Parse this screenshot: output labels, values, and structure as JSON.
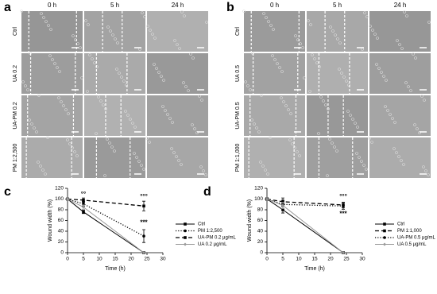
{
  "panels": [
    {
      "letter": "a",
      "columns": [
        "0 h",
        "5 h",
        "24 h"
      ],
      "rows": [
        "Ctrl",
        "UA 0.2",
        "UA-PM 0.2",
        "PM 1:2,500"
      ]
    },
    {
      "letter": "b",
      "columns": [
        "0 h",
        "5 h",
        "24 h"
      ],
      "rows": [
        "Ctrl",
        "UA 0.5",
        "UA-PM 0.5",
        "PM 1:1,000"
      ]
    }
  ],
  "chart_data": [
    {
      "type": "line",
      "letter": "c",
      "x_label": "Time (h)",
      "y_label": "Wound width (%)",
      "x": [
        0,
        5,
        24
      ],
      "xlim": [
        0,
        30
      ],
      "xticks": [
        0,
        5,
        10,
        15,
        20,
        25,
        30
      ],
      "ylim": [
        0,
        120
      ],
      "yticks": [
        0,
        20,
        40,
        60,
        80,
        100,
        120
      ],
      "series": [
        {
          "name": "Ctrl",
          "color": "#000000",
          "dash": "solid",
          "marker": "square",
          "values": [
            100,
            76,
            0
          ],
          "errors": [
            2,
            3,
            null
          ]
        },
        {
          "name": "PM 1:2,500",
          "color": "#000000",
          "dash": "dotted",
          "marker": "circle",
          "values": [
            100,
            91,
            31
          ],
          "errors": [
            2,
            4,
            12
          ]
        },
        {
          "name": "UA-PM 0.2 μg/mL",
          "color": "#000000",
          "dash": "dashed",
          "marker": "square",
          "values": [
            100,
            98,
            87
          ],
          "errors": [
            2,
            4,
            9
          ]
        },
        {
          "name": "UA 0.2 μg/mL",
          "color": "#999999",
          "dash": "solid",
          "marker": "diamond",
          "values": [
            100,
            85,
            0
          ],
          "errors": [
            2,
            4,
            null
          ]
        }
      ],
      "annotations": [
        {
          "text": "°°",
          "x": 5,
          "y": 108
        },
        {
          "text": "°°°",
          "x": 24,
          "y": 104
        },
        {
          "text": "***",
          "x": 24,
          "y": 56
        }
      ]
    },
    {
      "type": "line",
      "letter": "d",
      "x_label": "Time (h)",
      "y_label": "Wound width (%)",
      "x": [
        0,
        5,
        24
      ],
      "xlim": [
        0,
        30
      ],
      "xticks": [
        0,
        5,
        10,
        15,
        20,
        25,
        30
      ],
      "ylim": [
        0,
        120
      ],
      "yticks": [
        0,
        20,
        40,
        60,
        80,
        100,
        120
      ],
      "series": [
        {
          "name": "Ctrl",
          "color": "#000000",
          "dash": "solid",
          "marker": "square",
          "values": [
            100,
            80,
            0
          ],
          "errors": [
            3,
            6,
            null
          ]
        },
        {
          "name": "PM 1:1,000",
          "color": "#000000",
          "dash": "dashed",
          "marker": "square",
          "values": [
            100,
            95,
            89
          ],
          "errors": [
            3,
            7,
            5
          ]
        },
        {
          "name": "UA-PM 0.5 μg/mL",
          "color": "#000000",
          "dash": "dotted",
          "marker": "circle",
          "values": [
            100,
            90,
            87
          ],
          "errors": [
            3,
            8,
            6
          ]
        },
        {
          "name": "UA 0.5 μg/mL",
          "color": "#999999",
          "dash": "solid",
          "marker": "diamond",
          "values": [
            100,
            88,
            0
          ],
          "errors": [
            3,
            6,
            null
          ]
        }
      ],
      "annotations": [
        {
          "text": "°°°",
          "x": 24,
          "y": 104
        },
        {
          "text": "***",
          "x": 24,
          "y": 72
        }
      ]
    }
  ]
}
